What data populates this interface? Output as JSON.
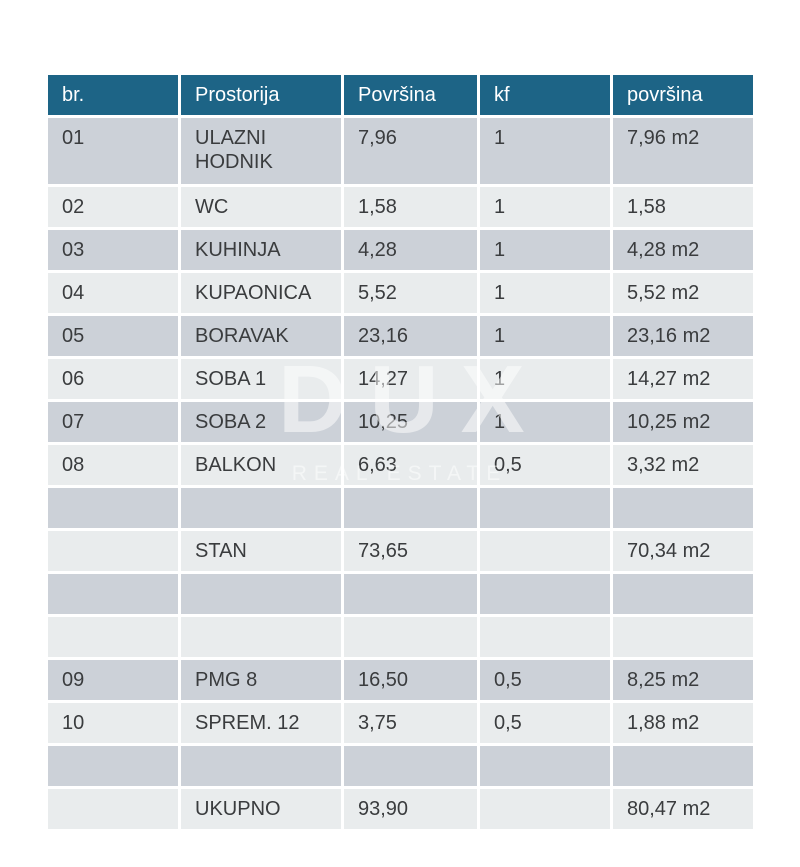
{
  "colors": {
    "header-bg": "#1d6486",
    "row-dark": "#ccd1d8",
    "row-light": "#e9eced",
    "text": "#3a3c3e",
    "header-text": "#ffffff",
    "page-bg": "#ffffff"
  },
  "watermark": {
    "brand": "DUX",
    "tagline": "REAL ESTATE"
  },
  "chart_data": {
    "type": "table",
    "columns": [
      "br.",
      "Prostorija",
      "Površina",
      "kf",
      "površina"
    ],
    "rows": [
      [
        "01",
        "ULAZNI HODNIK",
        "7,96",
        "1",
        "7,96 m2"
      ],
      [
        "02",
        "WC",
        "1,58",
        "1",
        "1,58"
      ],
      [
        "03",
        "KUHINJA",
        "4,28",
        "1",
        "4,28 m2"
      ],
      [
        "04",
        "KUPAONICA",
        "5,52",
        "1",
        "5,52 m2"
      ],
      [
        "05",
        "BORAVAK",
        "23,16",
        "1",
        "23,16 m2"
      ],
      [
        "06",
        "SOBA 1",
        "14,27",
        "1",
        "14,27 m2"
      ],
      [
        "07",
        "SOBA 2",
        "10,25",
        "1",
        "10,25 m2"
      ],
      [
        "08",
        "BALKON",
        "6,63",
        "0,5",
        "3,32 m2"
      ],
      [
        "",
        "",
        "",
        "",
        ""
      ],
      [
        "",
        "STAN",
        "73,65",
        "",
        "70,34 m2"
      ],
      [
        "",
        "",
        "",
        "",
        ""
      ],
      [
        "",
        "",
        "",
        "",
        ""
      ],
      [
        "09",
        "PMG 8",
        "16,50",
        "0,5",
        "8,25 m2"
      ],
      [
        "10",
        "SPREM. 12",
        "3,75",
        "0,5",
        "1,88 m2"
      ],
      [
        "",
        "",
        "",
        "",
        ""
      ],
      [
        "",
        "UKUPNO",
        "93,90",
        "",
        "80,47 m2"
      ]
    ]
  },
  "table": {
    "columns": [
      "br.",
      "Prostorija",
      "Površina",
      "kf",
      "površina"
    ],
    "rows": [
      {
        "cells": [
          "01",
          "ULAZNI HODNIK",
          "7,96",
          "1",
          "7,96 m2"
        ]
      },
      {
        "cells": [
          "02",
          "WC",
          "1,58",
          "1",
          "1,58"
        ]
      },
      {
        "cells": [
          "03",
          "KUHINJA",
          "4,28",
          "1",
          "4,28 m2"
        ]
      },
      {
        "cells": [
          "04",
          "KUPAONICA",
          "5,52",
          "1",
          "5,52 m2"
        ]
      },
      {
        "cells": [
          "05",
          "BORAVAK",
          "23,16",
          "1",
          "23,16 m2"
        ]
      },
      {
        "cells": [
          "06",
          "SOBA 1",
          "14,27",
          "1",
          "14,27 m2"
        ]
      },
      {
        "cells": [
          "07",
          "SOBA 2",
          "10,25",
          "1",
          "10,25 m2"
        ]
      },
      {
        "cells": [
          "08",
          "BALKON",
          "6,63",
          "0,5",
          "3,32 m2"
        ]
      },
      {
        "cells": [
          "",
          "",
          "",
          "",
          ""
        ]
      },
      {
        "cells": [
          "",
          "STAN",
          "73,65",
          "",
          "70,34 m2"
        ]
      },
      {
        "cells": [
          "",
          "",
          "",
          "",
          ""
        ]
      },
      {
        "cells": [
          "",
          "",
          "",
          "",
          ""
        ]
      },
      {
        "cells": [
          "09",
          "PMG 8",
          "16,50",
          "0,5",
          "8,25 m2"
        ]
      },
      {
        "cells": [
          "10",
          "SPREM. 12",
          "3,75",
          "0,5",
          "1,88 m2"
        ]
      },
      {
        "cells": [
          "",
          "",
          "",
          "",
          ""
        ]
      },
      {
        "cells": [
          "",
          "UKUPNO",
          "93,90",
          "",
          "80,47 m2"
        ]
      }
    ]
  }
}
